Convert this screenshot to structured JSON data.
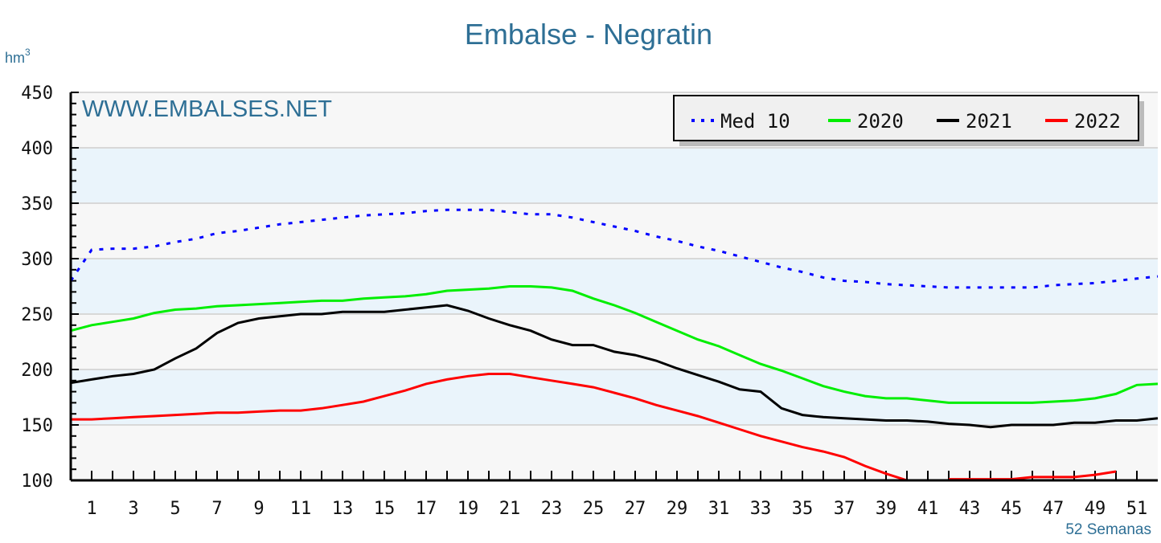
{
  "chart_data": {
    "type": "line",
    "title": "Embalse - Negratin",
    "ylabel": "hm",
    "ylabel_sup": "3",
    "xlabel": "52 Semanas",
    "watermark": "WWW.EMBALSES.NET",
    "ylim": [
      100,
      450
    ],
    "xlim": [
      0,
      52
    ],
    "yticks": [
      100,
      150,
      200,
      250,
      300,
      350,
      400,
      450
    ],
    "xticks": [
      1,
      3,
      5,
      7,
      9,
      11,
      13,
      15,
      17,
      19,
      21,
      23,
      25,
      27,
      29,
      31,
      33,
      35,
      37,
      39,
      41,
      43,
      45,
      47,
      49,
      51
    ],
    "grid": true,
    "legend_position": "top-right",
    "x": [
      0,
      1,
      2,
      3,
      4,
      5,
      6,
      7,
      8,
      9,
      10,
      11,
      12,
      13,
      14,
      15,
      16,
      17,
      18,
      19,
      20,
      21,
      22,
      23,
      24,
      25,
      26,
      27,
      28,
      29,
      30,
      31,
      32,
      33,
      34,
      35,
      36,
      37,
      38,
      39,
      40,
      41,
      42,
      43,
      44,
      45,
      46,
      47,
      48,
      49,
      50,
      51,
      52
    ],
    "series": [
      {
        "name": "Med 10",
        "color": "#0000ff",
        "style": "dotted",
        "values": [
          280,
          308,
          309,
          309,
          311,
          315,
          318,
          323,
          325,
          328,
          331,
          333,
          335,
          337,
          339,
          340,
          341,
          343,
          344,
          344,
          344,
          342,
          340,
          340,
          337,
          333,
          329,
          325,
          320,
          316,
          311,
          307,
          302,
          297,
          292,
          288,
          283,
          280,
          279,
          277,
          276,
          275,
          274,
          274,
          274,
          274,
          274,
          276,
          277,
          278,
          280,
          282,
          284
        ]
      },
      {
        "name": "2020",
        "color": "#00ee00",
        "style": "solid",
        "values": [
          235,
          240,
          243,
          246,
          251,
          254,
          255,
          257,
          258,
          259,
          260,
          261,
          262,
          262,
          264,
          265,
          266,
          268,
          271,
          272,
          273,
          275,
          275,
          274,
          271,
          264,
          258,
          251,
          243,
          235,
          227,
          221,
          213,
          205,
          199,
          192,
          185,
          180,
          176,
          174,
          174,
          172,
          170,
          170,
          170,
          170,
          170,
          171,
          172,
          174,
          178,
          186,
          187
        ]
      },
      {
        "name": "2021",
        "color": "#000000",
        "style": "solid",
        "values": [
          188,
          191,
          194,
          196,
          200,
          210,
          219,
          233,
          242,
          246,
          248,
          250,
          250,
          252,
          252,
          252,
          254,
          256,
          258,
          253,
          246,
          240,
          235,
          227,
          222,
          222,
          216,
          213,
          208,
          201,
          195,
          189,
          182,
          180,
          165,
          159,
          157,
          156,
          155,
          154,
          154,
          153,
          151,
          150,
          148,
          150,
          150,
          150,
          152,
          152,
          154,
          154,
          156
        ]
      },
      {
        "name": "2022",
        "color": "#ff0000",
        "style": "solid",
        "values": [
          155,
          155,
          156,
          157,
          158,
          159,
          160,
          161,
          161,
          162,
          163,
          163,
          165,
          168,
          171,
          176,
          181,
          187,
          191,
          194,
          196,
          196,
          193,
          190,
          187,
          184,
          179,
          174,
          168,
          163,
          158,
          152,
          146,
          140,
          135,
          130,
          126,
          121,
          113,
          106,
          100,
          null,
          101,
          101,
          101,
          101,
          103,
          103,
          103,
          105,
          108,
          null,
          null
        ]
      }
    ],
    "colors": {
      "title": "#2e6f95",
      "band": "#eaf4fb",
      "plot_bg": "#f7f7f7"
    }
  }
}
